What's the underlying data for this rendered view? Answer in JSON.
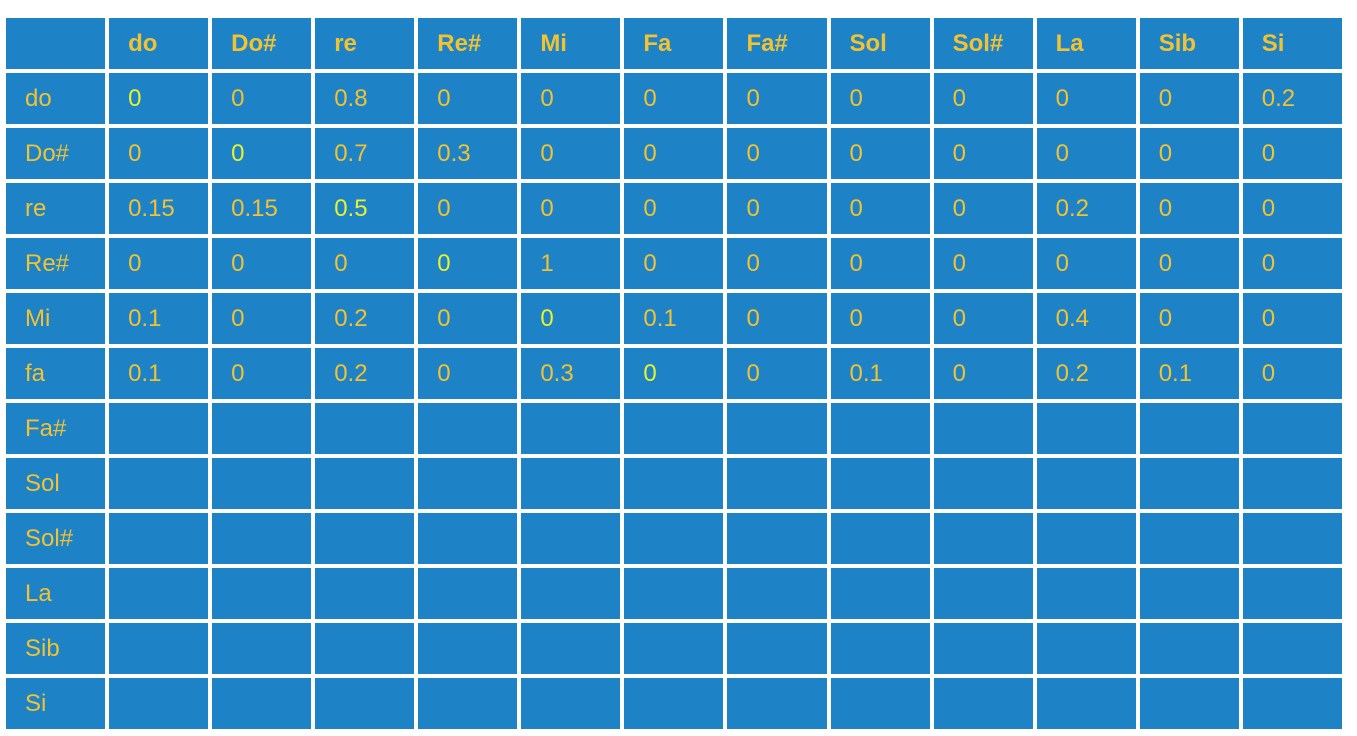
{
  "table": {
    "corner": "",
    "col_headers": [
      "do",
      "Do#",
      "re",
      "Re#",
      "Mi",
      "Fa",
      "Fa#",
      "Sol",
      "Sol#",
      "La",
      "Sib",
      "Si"
    ],
    "rows": [
      {
        "label": "do",
        "values": [
          "0",
          "0",
          "0.8",
          "0",
          "0",
          "0",
          "0",
          "0",
          "0",
          "0",
          "0",
          "0.2"
        ]
      },
      {
        "label": "Do#",
        "values": [
          "0",
          "0",
          "0.7",
          "0.3",
          "0",
          "0",
          "0",
          "0",
          "0",
          "0",
          "0",
          "0"
        ]
      },
      {
        "label": "re",
        "values": [
          "0.15",
          "0.15",
          "0.5",
          "0",
          "0",
          "0",
          "0",
          "0",
          "0",
          "0.2",
          "0",
          "0"
        ]
      },
      {
        "label": "Re#",
        "values": [
          "0",
          "0",
          "0",
          "0",
          "1",
          "0",
          "0",
          "0",
          "0",
          "0",
          "0",
          "0"
        ]
      },
      {
        "label": "Mi",
        "values": [
          "0.1",
          "0",
          "0.2",
          "0",
          "0",
          "0.1",
          "0",
          "0",
          "0",
          "0.4",
          "0",
          "0"
        ]
      },
      {
        "label": "fa",
        "values": [
          "0.1",
          "0",
          "0.2",
          "0",
          "0.3",
          "0",
          "0",
          "0.1",
          "0",
          "0.2",
          "0.1",
          "0"
        ]
      },
      {
        "label": "Fa#",
        "values": [
          "",
          "",
          "",
          "",
          "",
          "",
          "",
          "",
          "",
          "",
          "",
          ""
        ]
      },
      {
        "label": "Sol",
        "values": [
          "",
          "",
          "",
          "",
          "",
          "",
          "",
          "",
          "",
          "",
          "",
          ""
        ]
      },
      {
        "label": "Sol#",
        "values": [
          "",
          "",
          "",
          "",
          "",
          "",
          "",
          "",
          "",
          "",
          "",
          ""
        ]
      },
      {
        "label": "La",
        "values": [
          "",
          "",
          "",
          "",
          "",
          "",
          "",
          "",
          "",
          "",
          "",
          ""
        ]
      },
      {
        "label": "Sib",
        "values": [
          "",
          "",
          "",
          "",
          "",
          "",
          "",
          "",
          "",
          "",
          "",
          ""
        ]
      },
      {
        "label": "Si",
        "values": [
          "",
          "",
          "",
          "",
          "",
          "",
          "",
          "",
          "",
          "",
          "",
          ""
        ]
      }
    ]
  },
  "colors": {
    "cell_background": "#1e82c6",
    "text": "#f1c232",
    "diagonal_text": "#e7f22e",
    "gridline": "#ffffff"
  }
}
